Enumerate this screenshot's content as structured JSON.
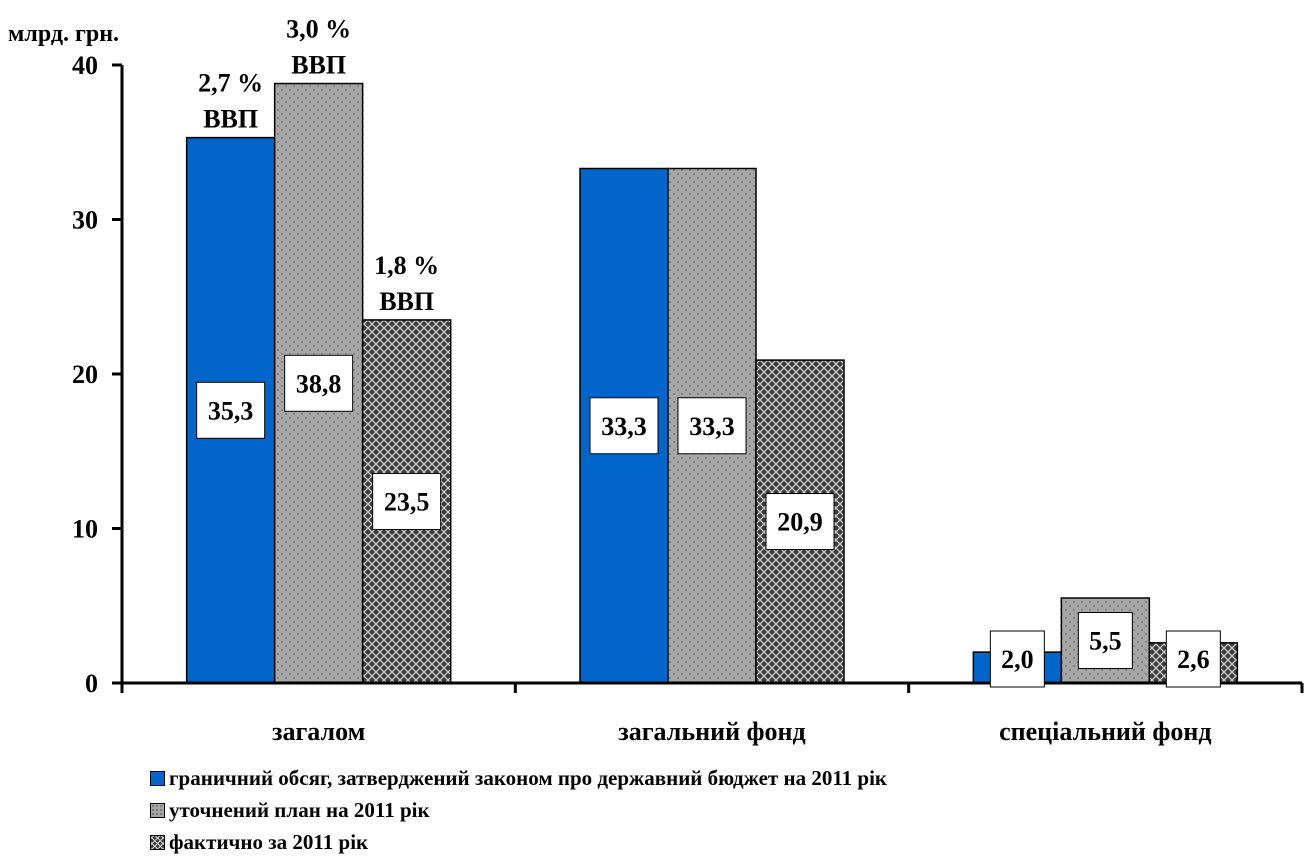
{
  "chart_data": {
    "type": "bar",
    "ylabel": "млрд. грн.",
    "ylim": [
      0,
      40
    ],
    "yticks": [
      0,
      10,
      20,
      30,
      40
    ],
    "categories": [
      "загалом",
      "загальний фонд",
      "спеціальний фонд"
    ],
    "series": [
      {
        "name": "граничний обсяг, затверджений законом про державний бюджет на 2011 рік",
        "values": [
          35.3,
          33.3,
          2.0
        ],
        "value_labels": [
          "35,3",
          "33,3",
          "2,0"
        ],
        "color": "#0066cc",
        "pattern": "solid"
      },
      {
        "name": "уточнений план на 2011 рік",
        "values": [
          38.8,
          33.3,
          5.5
        ],
        "value_labels": [
          "38,8",
          "33,3",
          "5,5"
        ],
        "color": "#a6a6a6",
        "pattern": "dots"
      },
      {
        "name": "фактично за 2011 рік",
        "values": [
          23.5,
          20.9,
          2.6
        ],
        "value_labels": [
          "23,5",
          "20,9",
          "2,6"
        ],
        "color": "#4d4d4d",
        "pattern": "crosshatch"
      }
    ],
    "annotations": [
      {
        "series": 0,
        "category": 0,
        "lines": [
          "2,7 %",
          "ВВП"
        ]
      },
      {
        "series": 1,
        "category": 0,
        "lines": [
          "3,0 %",
          "ВВП"
        ]
      },
      {
        "series": 2,
        "category": 0,
        "lines": [
          "1,8 %",
          "ВВП"
        ]
      }
    ],
    "legend_position": "bottom",
    "grid": false
  }
}
